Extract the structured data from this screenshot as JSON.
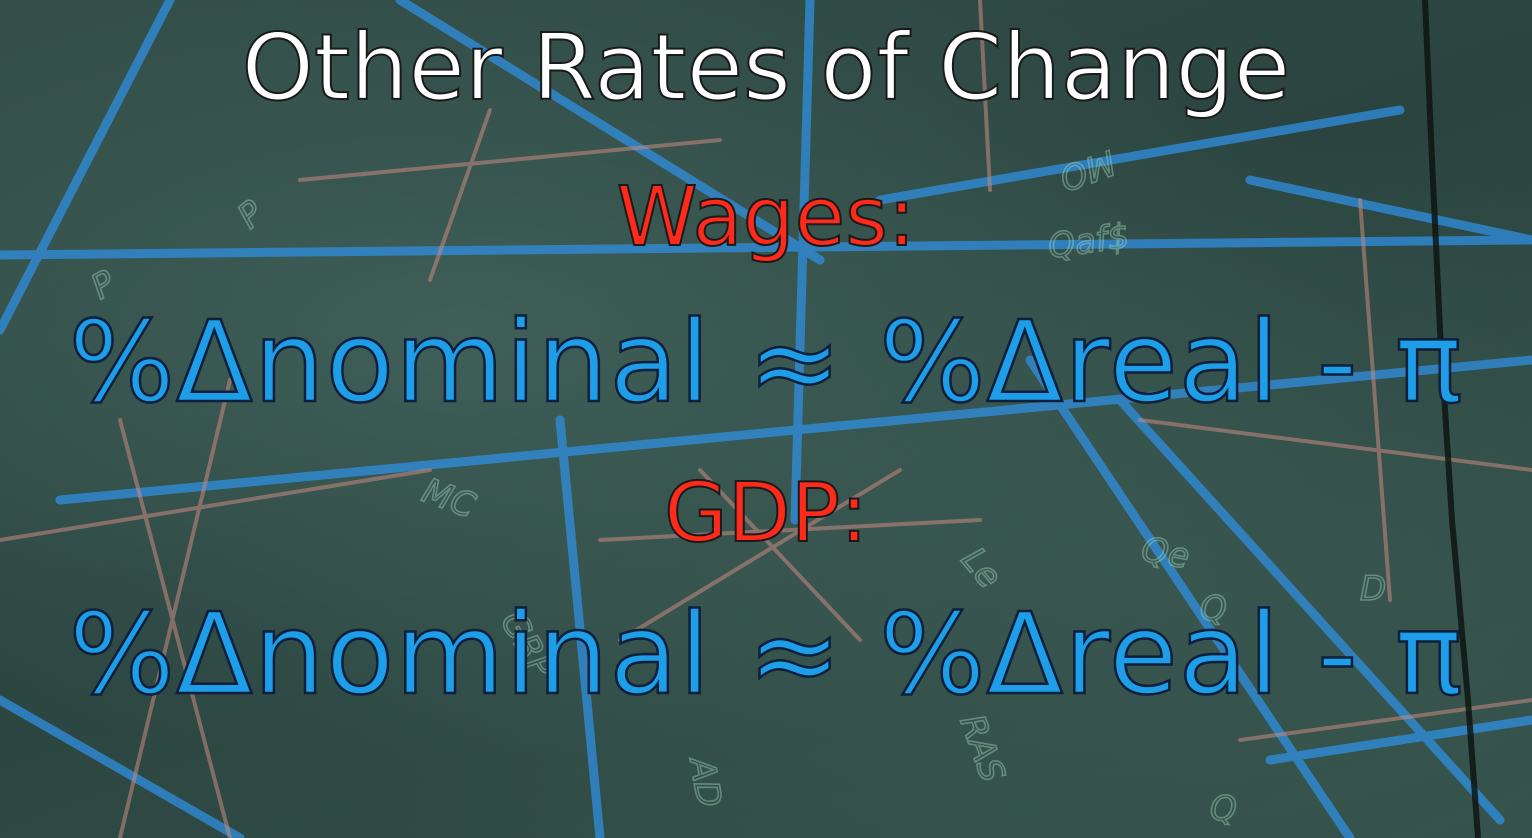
{
  "slide": {
    "title": "Other Rates of Change",
    "sections": [
      {
        "label": "Wages:",
        "formula": "%Δnominal ≈ %Δreal - π"
      },
      {
        "label": "GDP:",
        "formula": "%Δnominal ≈ %Δreal - π"
      }
    ]
  },
  "colors": {
    "title": "#ffffff",
    "section_label": "#ff2a1a",
    "formula": "#1e9de8",
    "chalkboard": "#2f4a44",
    "chalk_blue": "#2f8fe0",
    "chalk_pink": "#c98a82"
  }
}
